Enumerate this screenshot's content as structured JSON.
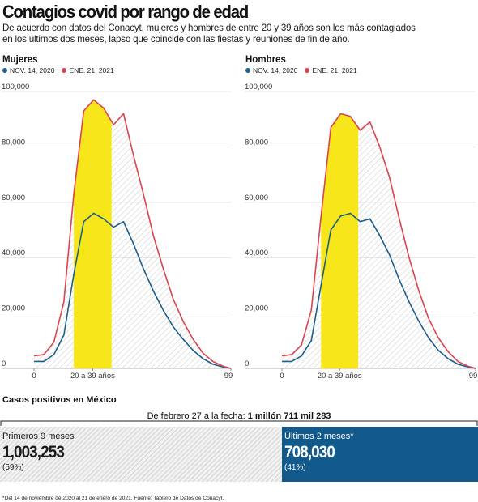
{
  "title": "Contagios covid por rango de edad",
  "subtitle_lines": [
    "De acuerdo con datos del Conacyt, mujeres y hombres de entre 20 y 39 años son los más contagiados",
    "en los últimos dos meses, lapso que coincide con las fiestas y reuniones de fin de año."
  ],
  "colors": {
    "nov": "#1d5f8a",
    "ene": "#d94452",
    "highlight": "#f7e619",
    "box_right": "#135a8c"
  },
  "chart_data": [
    {
      "type": "line",
      "title": "Mujeres",
      "x_tick_labels": [
        "0",
        "20 a 39 años",
        "99"
      ],
      "y_tick_labels": [
        "0",
        "20,000",
        "40,000",
        "60,000",
        "80,000",
        "100,000"
      ],
      "ylim": [
        0,
        100000
      ],
      "highlight_band": "20 a 39 años",
      "x": [
        0,
        5,
        10,
        15,
        20,
        25,
        30,
        35,
        40,
        45,
        50,
        55,
        60,
        65,
        70,
        75,
        80,
        85,
        90,
        95,
        99
      ],
      "series": [
        {
          "name": "NOV. 14, 2020",
          "color": "#1d5f8a",
          "values": [
            2500,
            2500,
            5000,
            12000,
            34000,
            53000,
            56000,
            54000,
            51000,
            53000,
            45000,
            36000,
            28000,
            21000,
            15000,
            10500,
            6500,
            3500,
            1500,
            500,
            0
          ]
        },
        {
          "name": "ENE. 21, 2021",
          "color": "#d94452",
          "values": [
            4500,
            5000,
            9500,
            24000,
            63000,
            93000,
            97000,
            94000,
            88000,
            92000,
            77000,
            63000,
            48000,
            36000,
            25000,
            17000,
            10500,
            5500,
            2500,
            800,
            0
          ]
        }
      ]
    },
    {
      "type": "line",
      "title": "Hombres",
      "x_tick_labels": [
        "0",
        "20 a 39 años",
        "99"
      ],
      "y_tick_labels": [
        "0",
        "20,000",
        "40,000",
        "60,000",
        "80,000",
        "100,000"
      ],
      "ylim": [
        0,
        100000
      ],
      "highlight_band": "20 a 39 años",
      "x": [
        0,
        5,
        10,
        15,
        20,
        25,
        30,
        35,
        40,
        45,
        50,
        55,
        60,
        65,
        70,
        75,
        80,
        85,
        90,
        95,
        99
      ],
      "series": [
        {
          "name": "NOV. 14, 2020",
          "color": "#1d5f8a",
          "values": [
            2500,
            2500,
            4500,
            10000,
            30000,
            50000,
            55000,
            56000,
            53000,
            54000,
            48000,
            41000,
            32000,
            24000,
            17000,
            11000,
            6500,
            3500,
            1500,
            500,
            0
          ]
        },
        {
          "name": "ENE. 21, 2021",
          "color": "#d94452",
          "values": [
            4500,
            5000,
            8500,
            21000,
            55000,
            87000,
            92000,
            91000,
            86000,
            89000,
            80000,
            69000,
            54000,
            40000,
            28000,
            18000,
            11000,
            6000,
            2500,
            800,
            0
          ]
        }
      ]
    }
  ],
  "casos": {
    "title": "Casos positivos en México",
    "total_prefix": "De febrero 27 a la fecha:",
    "total_value": "1 millón 711 mil 283",
    "primeros": {
      "label": "Primeros 9 meses",
      "value": "1,003,253",
      "pct": "(59%)",
      "fraction": 0.59
    },
    "ultimos": {
      "label": "Últimos 2 meses*",
      "value": "708,030",
      "pct": "(41%)",
      "fraction": 0.41
    }
  },
  "footnote": "*Del 14 de noviembre de 2020 al 21 de enero de 2021. Fuente: Tablero de Datos de Conacyt."
}
